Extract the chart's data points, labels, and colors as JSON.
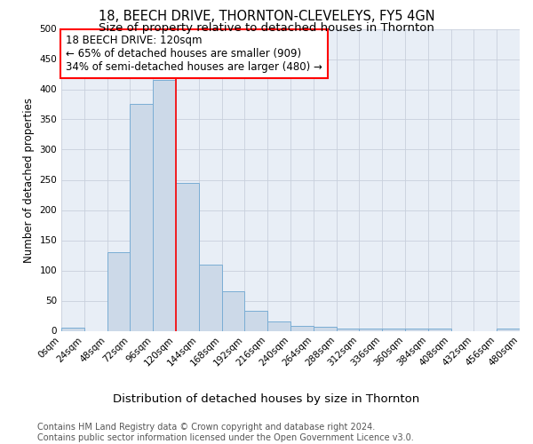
{
  "title": "18, BEECH DRIVE, THORNTON-CLEVELEYS, FY5 4GN",
  "subtitle": "Size of property relative to detached houses in Thornton",
  "xlabel": "Distribution of detached houses by size in Thornton",
  "ylabel": "Number of detached properties",
  "bin_edges": [
    0,
    24,
    48,
    72,
    96,
    120,
    144,
    168,
    192,
    216,
    240,
    264,
    288,
    312,
    336,
    360,
    384,
    408,
    432,
    456,
    480
  ],
  "counts": [
    5,
    0,
    130,
    375,
    415,
    245,
    110,
    65,
    33,
    15,
    8,
    6,
    4,
    3,
    3,
    3,
    4,
    0,
    0,
    3
  ],
  "bar_color": "#ccd9e8",
  "bar_edge_color": "#7aadd4",
  "vline_x": 120,
  "vline_color": "red",
  "annotation_text": "18 BEECH DRIVE: 120sqm\n← 65% of detached houses are smaller (909)\n34% of semi-detached houses are larger (480) →",
  "annotation_box_color": "white",
  "annotation_box_edge_color": "red",
  "annotation_fontsize": 8.5,
  "title_fontsize": 10.5,
  "subtitle_fontsize": 9.5,
  "xlabel_fontsize": 9.5,
  "ylabel_fontsize": 8.5,
  "tick_fontsize": 7.5,
  "ylim": [
    0,
    500
  ],
  "yticks": [
    0,
    50,
    100,
    150,
    200,
    250,
    300,
    350,
    400,
    450,
    500
  ],
  "grid_color": "#c8d0dc",
  "background_color": "#e8eef6",
  "footer_text": "Contains HM Land Registry data © Crown copyright and database right 2024.\nContains public sector information licensed under the Open Government Licence v3.0.",
  "footer_fontsize": 7.0
}
